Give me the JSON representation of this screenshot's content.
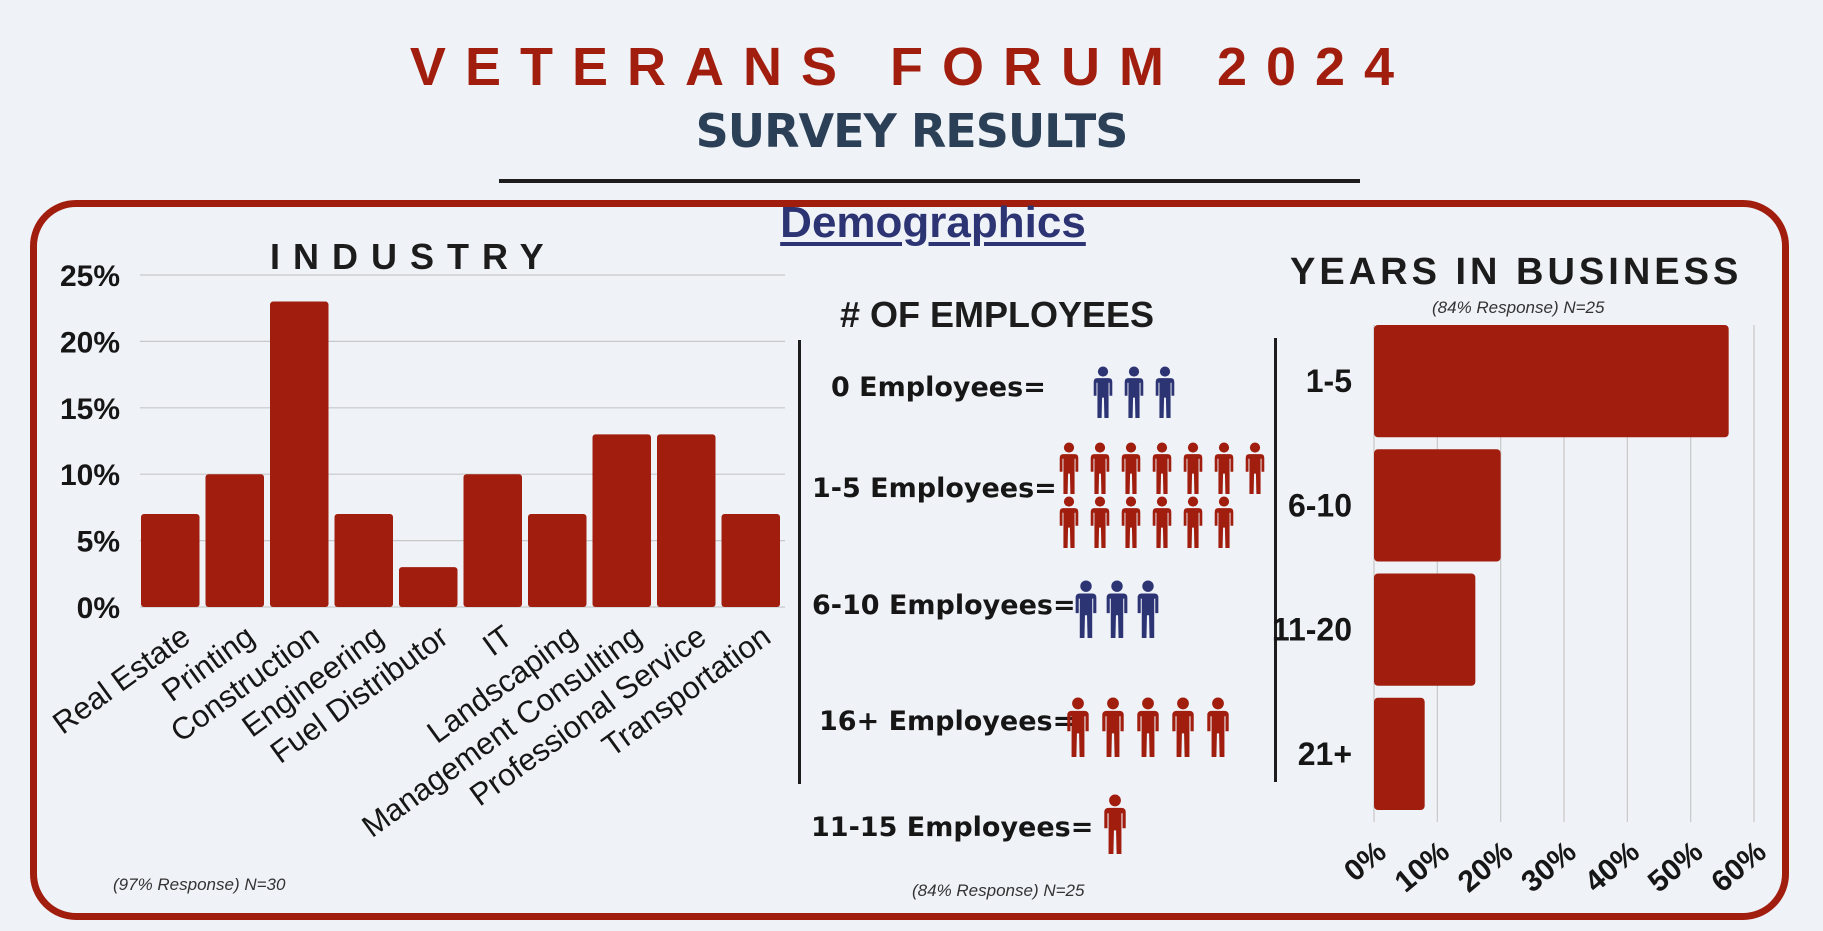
{
  "header": {
    "title": "VETERANS FORUM 2024",
    "subtitle": "SURVEY RESULTS",
    "section": "Demographics"
  },
  "industry": {
    "title": "INDUSTRY",
    "note": "(97% Response) N=30"
  },
  "employees": {
    "title": "# OF EMPLOYEES",
    "note": "(84% Response) N=25",
    "rows": [
      {
        "label": "0 Employees=",
        "count": 3,
        "color": "#2d3474"
      },
      {
        "label": "1-5 Employees=",
        "count": 13,
        "color": "#a11e0f"
      },
      {
        "label": "6-10 Employees=",
        "count": 3,
        "color": "#2d3474"
      },
      {
        "label": "16+ Employees=",
        "count": 5,
        "color": "#a11e0f"
      },
      {
        "label": "11-15 Employees=",
        "count": 1,
        "color": "#a11e0f"
      }
    ]
  },
  "years": {
    "title": "YEARS IN BUSINESS",
    "note": "(84% Response) N=25"
  },
  "colors": {
    "bar": "#a11e0f",
    "title": "#a11e0f",
    "subtitle": "#2b4057",
    "navy": "#2d3474",
    "grid": "#c8c8c8"
  },
  "chart_data": [
    {
      "type": "bar",
      "title": "INDUSTRY",
      "categories": [
        "Real Estate",
        "Printing",
        "Construction",
        "Engineering",
        "Fuel Distributor",
        "IT",
        "Landscaping",
        "Management Consulting",
        "Professional Service",
        "Transportation"
      ],
      "values": [
        7,
        10,
        23,
        7,
        3,
        10,
        7,
        13,
        13,
        7
      ],
      "yticks": [
        "0%",
        "5%",
        "10%",
        "15%",
        "20%",
        "25%"
      ],
      "ylim": [
        0,
        25
      ],
      "grid": true,
      "unit": "%"
    },
    {
      "type": "bar",
      "orientation": "horizontal",
      "title": "YEARS IN BUSINESS",
      "categories": [
        "1-5",
        "6-10",
        "11-20",
        "21+"
      ],
      "values": [
        56,
        20,
        16,
        8
      ],
      "xticks": [
        "0%",
        "10%",
        "20%",
        "30%",
        "40%",
        "50%",
        "60%"
      ],
      "xlim": [
        0,
        60
      ],
      "grid": true,
      "unit": "%"
    }
  ]
}
